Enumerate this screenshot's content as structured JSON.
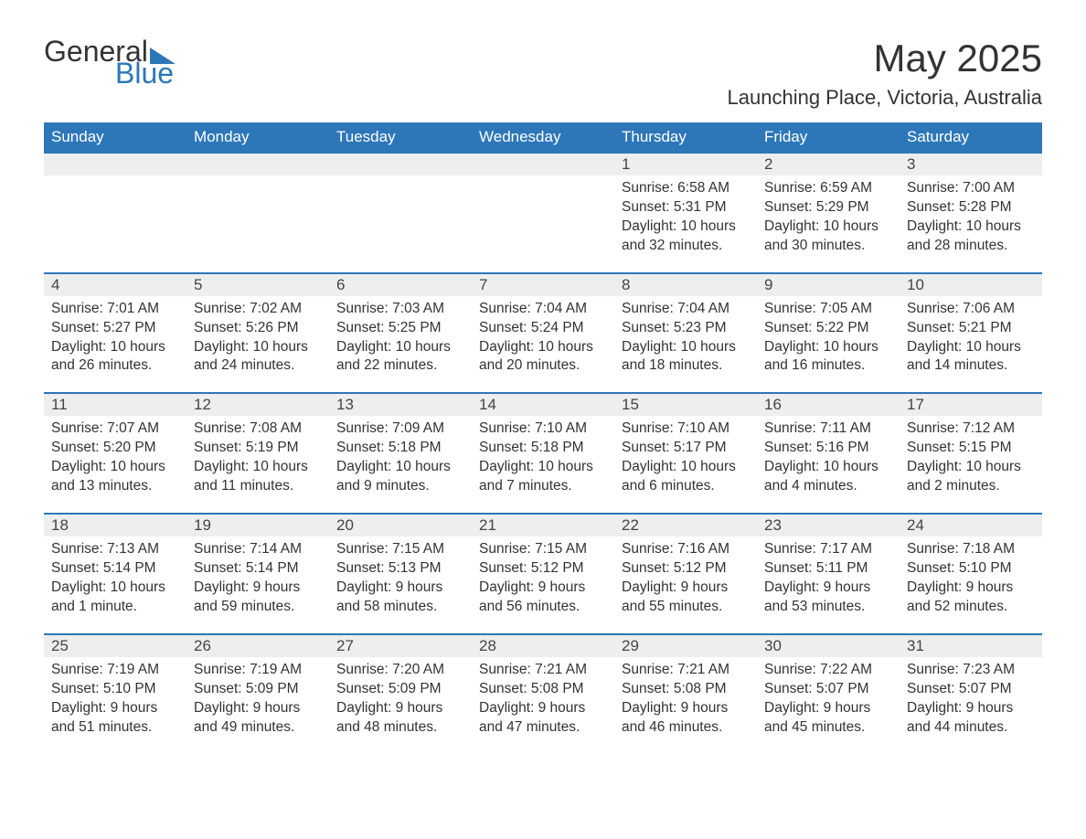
{
  "logo": {
    "text1": "General",
    "text2": "Blue",
    "color_accent": "#2d77b8"
  },
  "title": "May 2025",
  "location": "Launching Place, Victoria, Australia",
  "colors": {
    "header_bg": "#2d77b8",
    "header_text": "#ffffff",
    "daynum_bg": "#eeeeee",
    "border": "#2d77b8",
    "text": "#333333",
    "background": "#ffffff"
  },
  "fonts": {
    "title_size_pt": 32,
    "location_size_pt": 17,
    "header_size_pt": 13,
    "body_size_pt": 12
  },
  "weekdays": [
    "Sunday",
    "Monday",
    "Tuesday",
    "Wednesday",
    "Thursday",
    "Friday",
    "Saturday"
  ],
  "calendar": {
    "type": "table",
    "columns": 7,
    "first_weekday_index": 4,
    "days": [
      {
        "n": 1,
        "sunrise": "6:58 AM",
        "sunset": "5:31 PM",
        "daylight": "10 hours and 32 minutes."
      },
      {
        "n": 2,
        "sunrise": "6:59 AM",
        "sunset": "5:29 PM",
        "daylight": "10 hours and 30 minutes."
      },
      {
        "n": 3,
        "sunrise": "7:00 AM",
        "sunset": "5:28 PM",
        "daylight": "10 hours and 28 minutes."
      },
      {
        "n": 4,
        "sunrise": "7:01 AM",
        "sunset": "5:27 PM",
        "daylight": "10 hours and 26 minutes."
      },
      {
        "n": 5,
        "sunrise": "7:02 AM",
        "sunset": "5:26 PM",
        "daylight": "10 hours and 24 minutes."
      },
      {
        "n": 6,
        "sunrise": "7:03 AM",
        "sunset": "5:25 PM",
        "daylight": "10 hours and 22 minutes."
      },
      {
        "n": 7,
        "sunrise": "7:04 AM",
        "sunset": "5:24 PM",
        "daylight": "10 hours and 20 minutes."
      },
      {
        "n": 8,
        "sunrise": "7:04 AM",
        "sunset": "5:23 PM",
        "daylight": "10 hours and 18 minutes."
      },
      {
        "n": 9,
        "sunrise": "7:05 AM",
        "sunset": "5:22 PM",
        "daylight": "10 hours and 16 minutes."
      },
      {
        "n": 10,
        "sunrise": "7:06 AM",
        "sunset": "5:21 PM",
        "daylight": "10 hours and 14 minutes."
      },
      {
        "n": 11,
        "sunrise": "7:07 AM",
        "sunset": "5:20 PM",
        "daylight": "10 hours and 13 minutes."
      },
      {
        "n": 12,
        "sunrise": "7:08 AM",
        "sunset": "5:19 PM",
        "daylight": "10 hours and 11 minutes."
      },
      {
        "n": 13,
        "sunrise": "7:09 AM",
        "sunset": "5:18 PM",
        "daylight": "10 hours and 9 minutes."
      },
      {
        "n": 14,
        "sunrise": "7:10 AM",
        "sunset": "5:18 PM",
        "daylight": "10 hours and 7 minutes."
      },
      {
        "n": 15,
        "sunrise": "7:10 AM",
        "sunset": "5:17 PM",
        "daylight": "10 hours and 6 minutes."
      },
      {
        "n": 16,
        "sunrise": "7:11 AM",
        "sunset": "5:16 PM",
        "daylight": "10 hours and 4 minutes."
      },
      {
        "n": 17,
        "sunrise": "7:12 AM",
        "sunset": "5:15 PM",
        "daylight": "10 hours and 2 minutes."
      },
      {
        "n": 18,
        "sunrise": "7:13 AM",
        "sunset": "5:14 PM",
        "daylight": "10 hours and 1 minute."
      },
      {
        "n": 19,
        "sunrise": "7:14 AM",
        "sunset": "5:14 PM",
        "daylight": "9 hours and 59 minutes."
      },
      {
        "n": 20,
        "sunrise": "7:15 AM",
        "sunset": "5:13 PM",
        "daylight": "9 hours and 58 minutes."
      },
      {
        "n": 21,
        "sunrise": "7:15 AM",
        "sunset": "5:12 PM",
        "daylight": "9 hours and 56 minutes."
      },
      {
        "n": 22,
        "sunrise": "7:16 AM",
        "sunset": "5:12 PM",
        "daylight": "9 hours and 55 minutes."
      },
      {
        "n": 23,
        "sunrise": "7:17 AM",
        "sunset": "5:11 PM",
        "daylight": "9 hours and 53 minutes."
      },
      {
        "n": 24,
        "sunrise": "7:18 AM",
        "sunset": "5:10 PM",
        "daylight": "9 hours and 52 minutes."
      },
      {
        "n": 25,
        "sunrise": "7:19 AM",
        "sunset": "5:10 PM",
        "daylight": "9 hours and 51 minutes."
      },
      {
        "n": 26,
        "sunrise": "7:19 AM",
        "sunset": "5:09 PM",
        "daylight": "9 hours and 49 minutes."
      },
      {
        "n": 27,
        "sunrise": "7:20 AM",
        "sunset": "5:09 PM",
        "daylight": "9 hours and 48 minutes."
      },
      {
        "n": 28,
        "sunrise": "7:21 AM",
        "sunset": "5:08 PM",
        "daylight": "9 hours and 47 minutes."
      },
      {
        "n": 29,
        "sunrise": "7:21 AM",
        "sunset": "5:08 PM",
        "daylight": "9 hours and 46 minutes."
      },
      {
        "n": 30,
        "sunrise": "7:22 AM",
        "sunset": "5:07 PM",
        "daylight": "9 hours and 45 minutes."
      },
      {
        "n": 31,
        "sunrise": "7:23 AM",
        "sunset": "5:07 PM",
        "daylight": "9 hours and 44 minutes."
      }
    ]
  },
  "labels": {
    "sunrise_prefix": "Sunrise: ",
    "sunset_prefix": "Sunset: ",
    "daylight_prefix": "Daylight: "
  }
}
